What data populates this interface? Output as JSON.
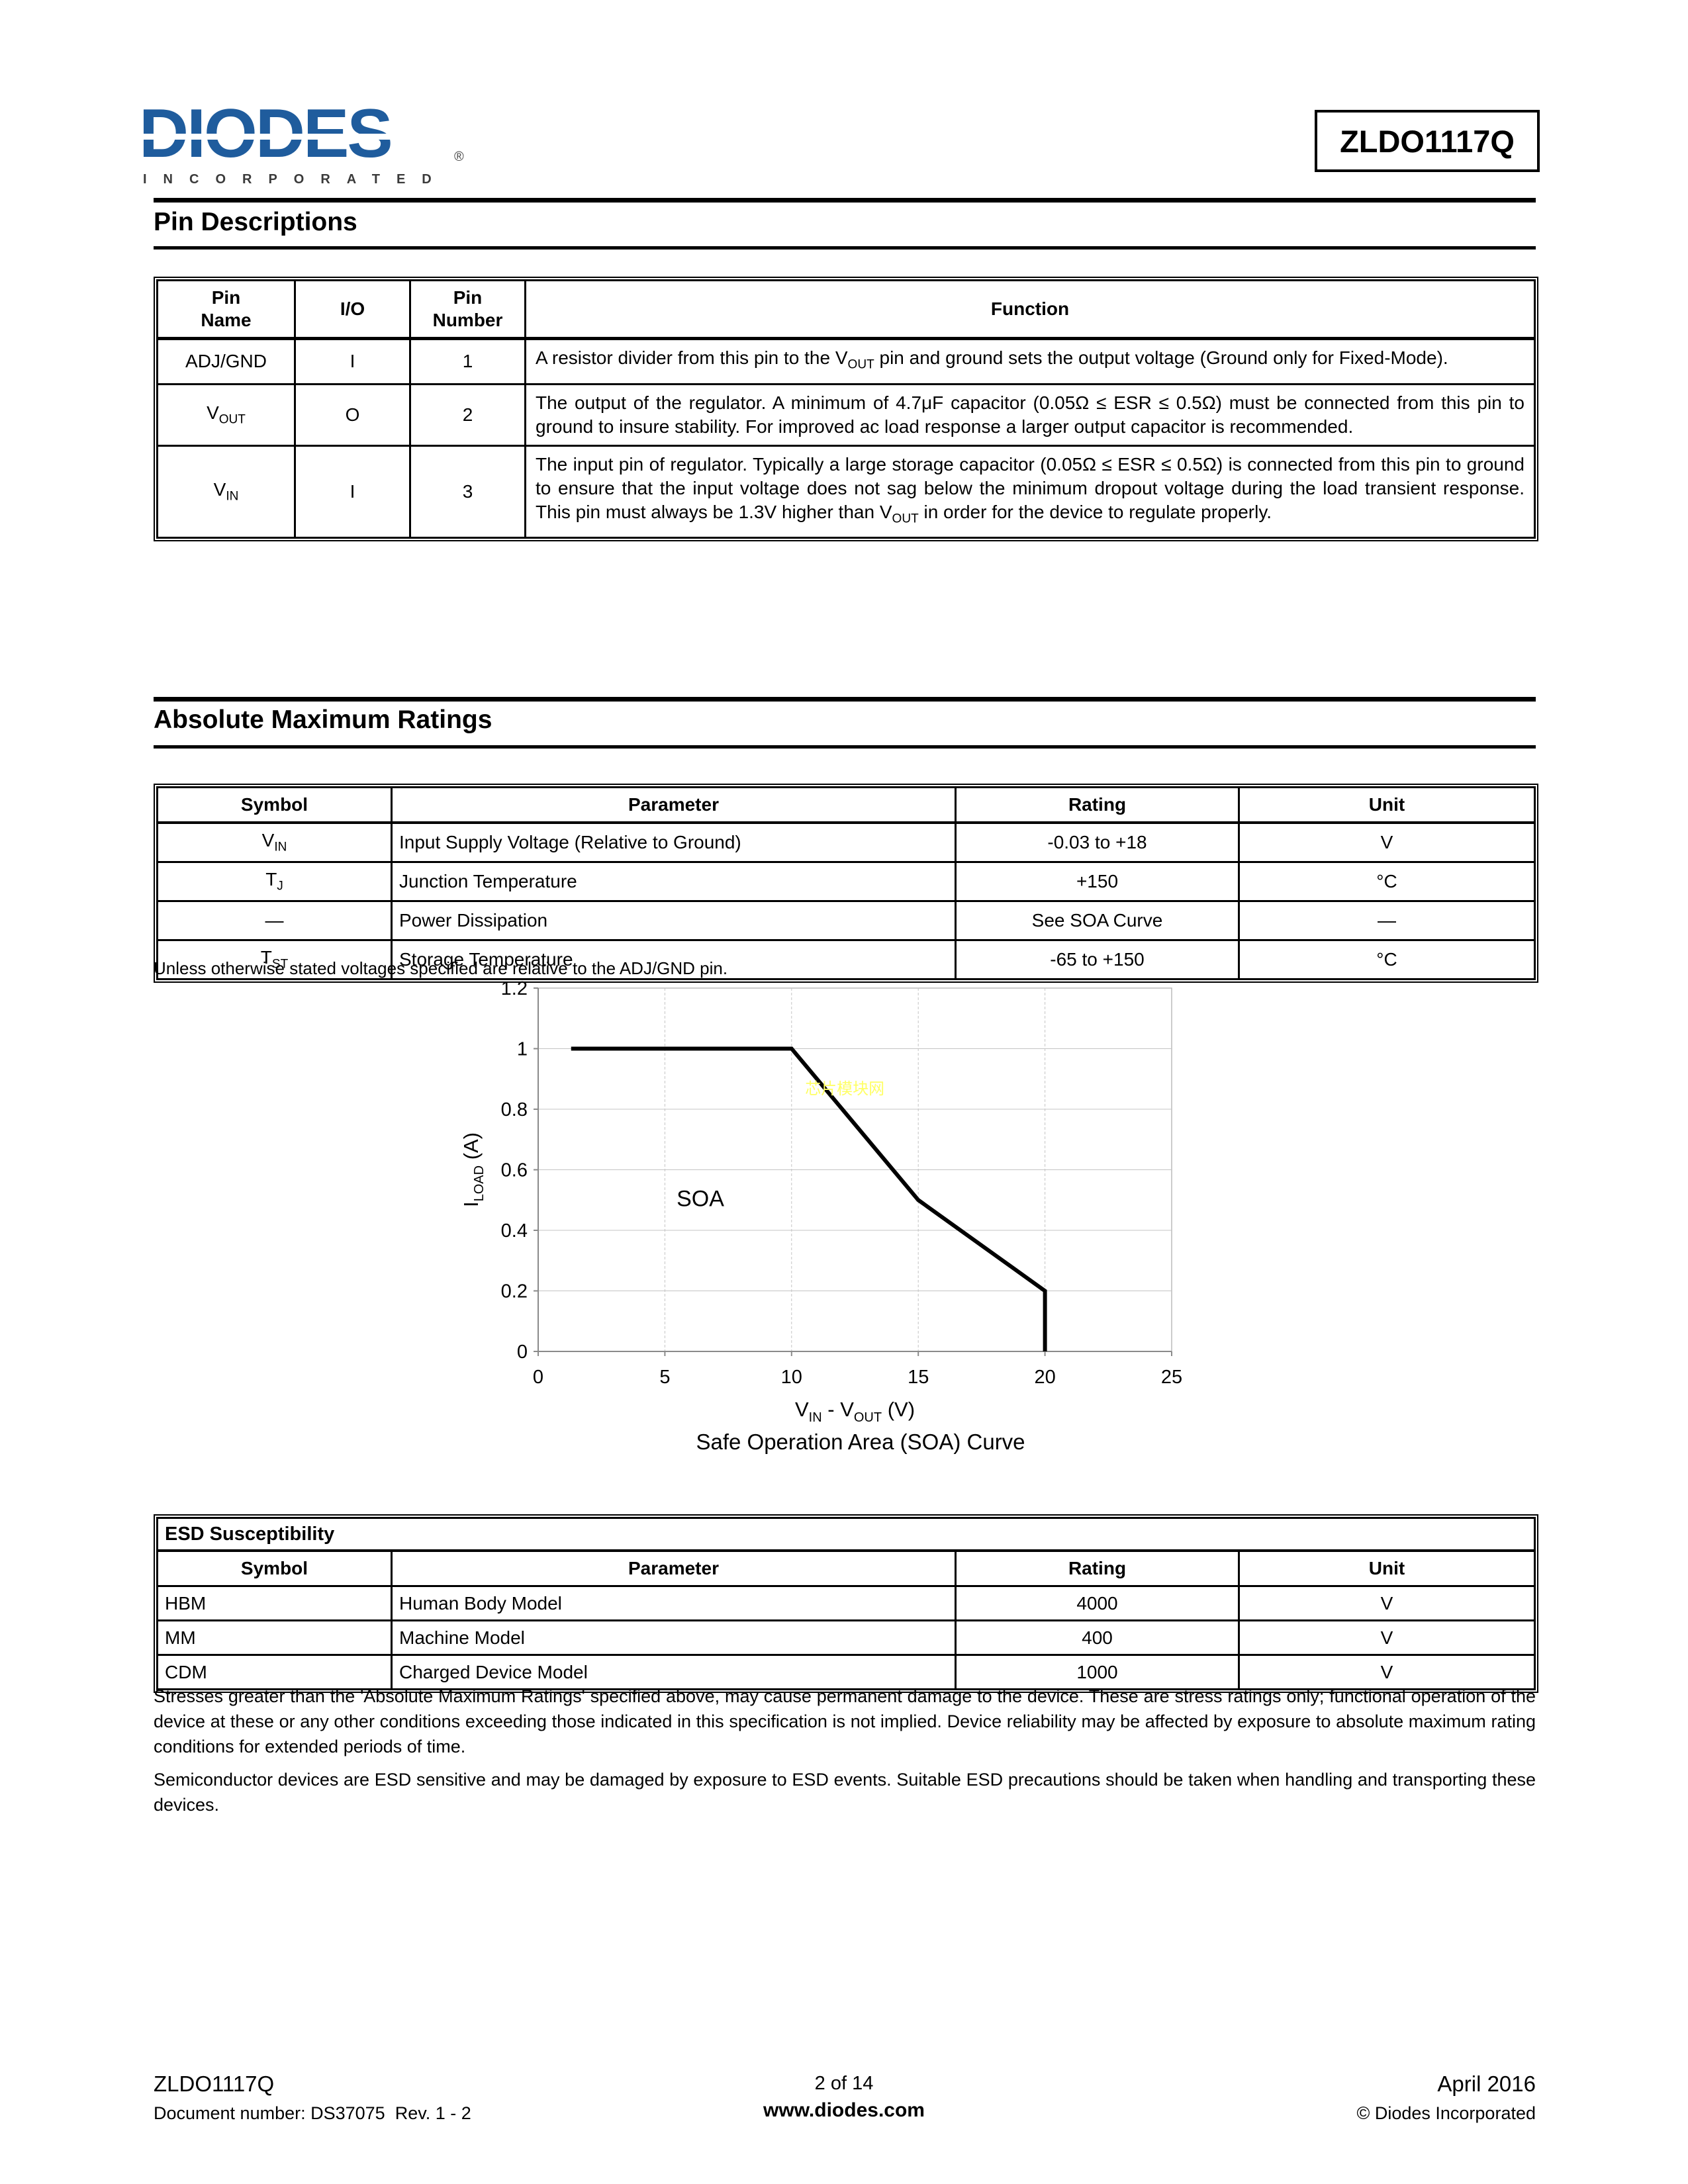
{
  "header": {
    "logo_word": "DIODES",
    "logo_sub": "INCORPORATED",
    "logo_reg": "®",
    "part_number": "ZLDO1117Q"
  },
  "sections": {
    "pin_desc_title": "Pin Descriptions",
    "amr_title": "Absolute Maximum Ratings"
  },
  "pin_table": {
    "headers": [
      "Pin\nName",
      "I/O",
      "Pin\nNumber",
      "Function"
    ],
    "rows": [
      {
        "name": "ADJ/GND",
        "io": "I",
        "number": "1",
        "function": "A resistor divider from this pin to the V[sub]OUT[/sub] pin and ground sets the output voltage (Ground only for Fixed-Mode)."
      },
      {
        "name": "V[sub]OUT[/sub]",
        "io": "O",
        "number": "2",
        "function": "The output of the regulator. A minimum of 4.7μF capacitor (0.05Ω ≤ ESR ≤ 0.5Ω) must be connected from this pin to ground to insure stability. For improved ac load response a larger output capacitor is recommended."
      },
      {
        "name": "V[sub]IN[/sub]",
        "io": "I",
        "number": "3",
        "function": "The input pin of regulator. Typically a large storage capacitor (0.05Ω ≤ ESR ≤ 0.5Ω) is connected from this pin to ground to ensure that the input voltage does not sag below the minimum dropout voltage during the load transient response. This pin must always be 1.3V higher than V[sub]OUT[/sub] in order for the device to regulate properly."
      }
    ]
  },
  "amr_table": {
    "headers": [
      "Symbol",
      "Parameter",
      "Rating",
      "Unit"
    ],
    "rows": [
      {
        "symbol": "V[sub]IN[/sub]",
        "parameter": "Input Supply Voltage (Relative to Ground)",
        "rating": "-0.03 to +18",
        "unit": "V"
      },
      {
        "symbol": "T[sub]J[/sub]",
        "parameter": "Junction Temperature",
        "rating": "+150",
        "unit": "°C"
      },
      {
        "symbol": "—",
        "parameter": "Power Dissipation",
        "rating": "See SOA Curve",
        "unit": "—"
      },
      {
        "symbol": "T[sub]ST[/sub]",
        "parameter": "Storage Temperature",
        "rating": "-65 to +150",
        "unit": "°C"
      }
    ],
    "note": "Unless otherwise stated voltages specified are relative to the ADJ/GND pin."
  },
  "chart_data": {
    "type": "line",
    "title": "Safe Operation Area (SOA) Curve",
    "xlabel": "VIN - VOUT (V)",
    "ylabel": "ILOAD (A)",
    "xlabel_parts": [
      {
        "t": "V"
      },
      {
        "t": "IN",
        "sub": true
      },
      {
        "t": " - V"
      },
      {
        "t": "OUT",
        "sub": true
      },
      {
        "t": " (V)"
      }
    ],
    "ylabel_parts": [
      {
        "t": "I"
      },
      {
        "t": "LOAD",
        "sub": true
      },
      {
        "t": " (A)"
      }
    ],
    "xlim": [
      0,
      25
    ],
    "ylim": [
      0,
      1.2
    ],
    "xticks": [
      0,
      5,
      10,
      15,
      20,
      25
    ],
    "yticks": [
      0,
      0.2,
      0.4,
      0.6,
      0.8,
      1,
      1.2
    ],
    "grid": true,
    "legend": false,
    "series": [
      {
        "name": "SOA boundary",
        "color": "#000000",
        "points": [
          [
            1.3,
            1
          ],
          [
            10,
            1
          ],
          [
            15,
            0.5
          ],
          [
            20,
            0.2
          ],
          [
            20,
            0
          ]
        ]
      }
    ],
    "annotations": [
      {
        "text": "SOA",
        "x": 6.4,
        "y": 0.48,
        "color": "#000000",
        "size": 34
      },
      {
        "text": "芯片模块网",
        "x": 12.1,
        "y": 0.85,
        "color": "#ffff66",
        "size": 24,
        "watermark": true
      }
    ]
  },
  "chart_caption": "Safe Operation Area (SOA) Curve",
  "esd_table": {
    "title": "ESD Susceptibility",
    "headers": [
      "Symbol",
      "Parameter",
      "Rating",
      "Unit"
    ],
    "rows": [
      {
        "symbol": "HBM",
        "parameter": "Human Body Model",
        "rating": "4000",
        "unit": "V"
      },
      {
        "symbol": "MM",
        "parameter": "Machine Model",
        "rating": "400",
        "unit": "V"
      },
      {
        "symbol": "CDM",
        "parameter": "Charged Device Model",
        "rating": "1000",
        "unit": "V"
      }
    ]
  },
  "notes": {
    "stress": "Stresses greater than the 'Absolute Maximum Ratings' specified above, may cause permanent damage to the device. These are stress ratings only; functional operation of the device at these or any other conditions exceeding those indicated in this specification is not implied. Device reliability may be affected by exposure to absolute maximum rating conditions for extended periods of time.",
    "esd": "Semiconductor devices are ESD sensitive and may be damaged by exposure to ESD events. Suitable ESD precautions should be taken when handling and transporting these devices."
  },
  "footer": {
    "part": "ZLDO1117Q",
    "doc": "Document number: DS37075  Rev. 1 - 2",
    "page": "2 of 14",
    "site": "www.diodes.com",
    "date": "April 2016",
    "copyright": "© Diodes Incorporated"
  }
}
